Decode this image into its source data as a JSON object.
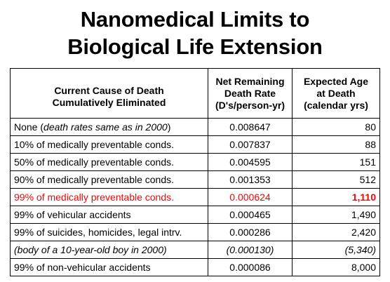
{
  "title": {
    "line1": "Nanomedical Limits to",
    "line2": "Biological Life Extension"
  },
  "colors": {
    "highlight": "#ff0000",
    "border": "#000000",
    "text": "#000000"
  },
  "table": {
    "headers": {
      "cause": [
        "Current Cause of Death",
        "Cumulatively Eliminated"
      ],
      "rate": [
        "Net Remaining",
        "Death Rate",
        "(D's/person-yr)"
      ],
      "age": [
        "Expected Age",
        "at Death",
        "(calendar yrs)"
      ]
    },
    "rows": [
      {
        "cause_prefix": "None (",
        "cause_italic": "death rates same as in 2000",
        "cause_suffix": ")",
        "rate": "0.008647",
        "age": "80"
      },
      {
        "cause_prefix": "10% of medically preventable conds.",
        "cause_italic": "",
        "cause_suffix": "",
        "rate": "0.007837",
        "age": "88"
      },
      {
        "cause_prefix": "50% of medically preventable conds.",
        "cause_italic": "",
        "cause_suffix": "",
        "rate": "0.004595",
        "age": "151"
      },
      {
        "cause_prefix": "90% of medically preventable conds.",
        "cause_italic": "",
        "cause_suffix": "",
        "rate": "0.001353",
        "age": "512"
      },
      {
        "cause_prefix": "99% of medically preventable conds.",
        "cause_italic": "",
        "cause_suffix": "",
        "rate": "0.000624",
        "age": "1,110"
      },
      {
        "cause_prefix": "99% of vehicular accidents",
        "cause_italic": "",
        "cause_suffix": "",
        "rate": "0.000465",
        "age": "1,490"
      },
      {
        "cause_prefix": "99% of suicides, homicides, legal intrv.",
        "cause_italic": "",
        "cause_suffix": "",
        "rate": "0.000286",
        "age": "2,420"
      },
      {
        "cause_prefix": "",
        "cause_italic": "(body of a 10-year-old boy in 2000)",
        "cause_suffix": "",
        "rate": "(0.000130)",
        "age": "(5,340)"
      },
      {
        "cause_prefix": "99% of non-vehicular accidents",
        "cause_italic": "",
        "cause_suffix": "",
        "rate": "0.000086",
        "age": "8,000"
      }
    ]
  }
}
